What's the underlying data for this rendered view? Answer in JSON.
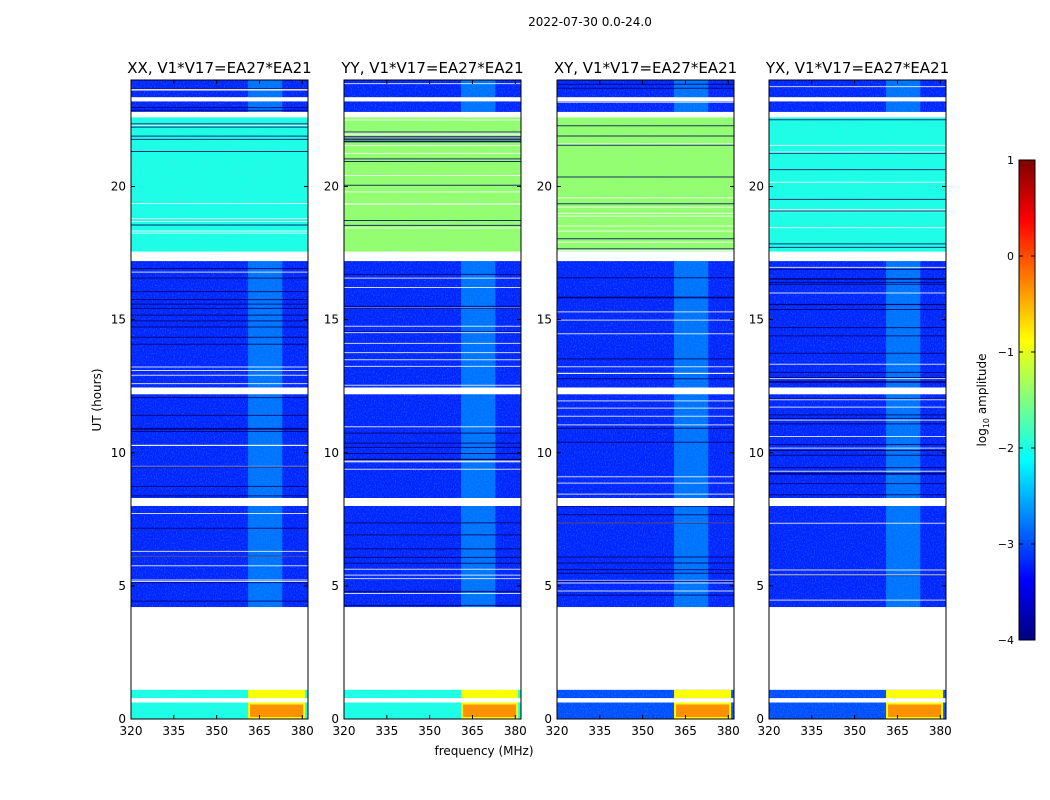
{
  "suptitle": "2022-07-30 0.0-24.0",
  "chart_data": {
    "type": "heatmap",
    "panels": [
      {
        "title": "XX, V1*V17=EA27*EA21",
        "pol": "XX"
      },
      {
        "title": "YY, V1*V17=EA27*EA21",
        "pol": "YY"
      },
      {
        "title": "XY, V1*V17=EA27*EA21",
        "pol": "XY"
      },
      {
        "title": "YX, V1*V17=EA27*EA21",
        "pol": "YX"
      }
    ],
    "xlabel": "frequency (MHz)",
    "ylabel": "UT (hours)",
    "xlim": [
      320,
      382
    ],
    "ylim": [
      0,
      24
    ],
    "xticks": [
      320,
      335,
      350,
      365,
      380
    ],
    "yticks": [
      0,
      5,
      10,
      15,
      20
    ],
    "colorbar": {
      "label": "log10 amplitude",
      "label_base": "log",
      "label_sub": "10",
      "label_rest": " amplitude",
      "range": [
        -4,
        1
      ],
      "ticks": [
        "1",
        "0",
        "−1",
        "−2",
        "−3",
        "−4"
      ],
      "colormap": "jet"
    },
    "gaps_hours": [
      [
        1.1,
        4.2
      ],
      [
        0.62,
        0.78
      ],
      [
        8.0,
        8.3
      ],
      [
        12.2,
        12.45
      ],
      [
        17.2,
        17.55
      ],
      [
        22.6,
        22.8
      ],
      [
        23.2,
        23.35
      ]
    ],
    "high_level_band_hours": [
      17.6,
      22.3
    ],
    "rfi_band_mhz": [
      361,
      381
    ]
  }
}
